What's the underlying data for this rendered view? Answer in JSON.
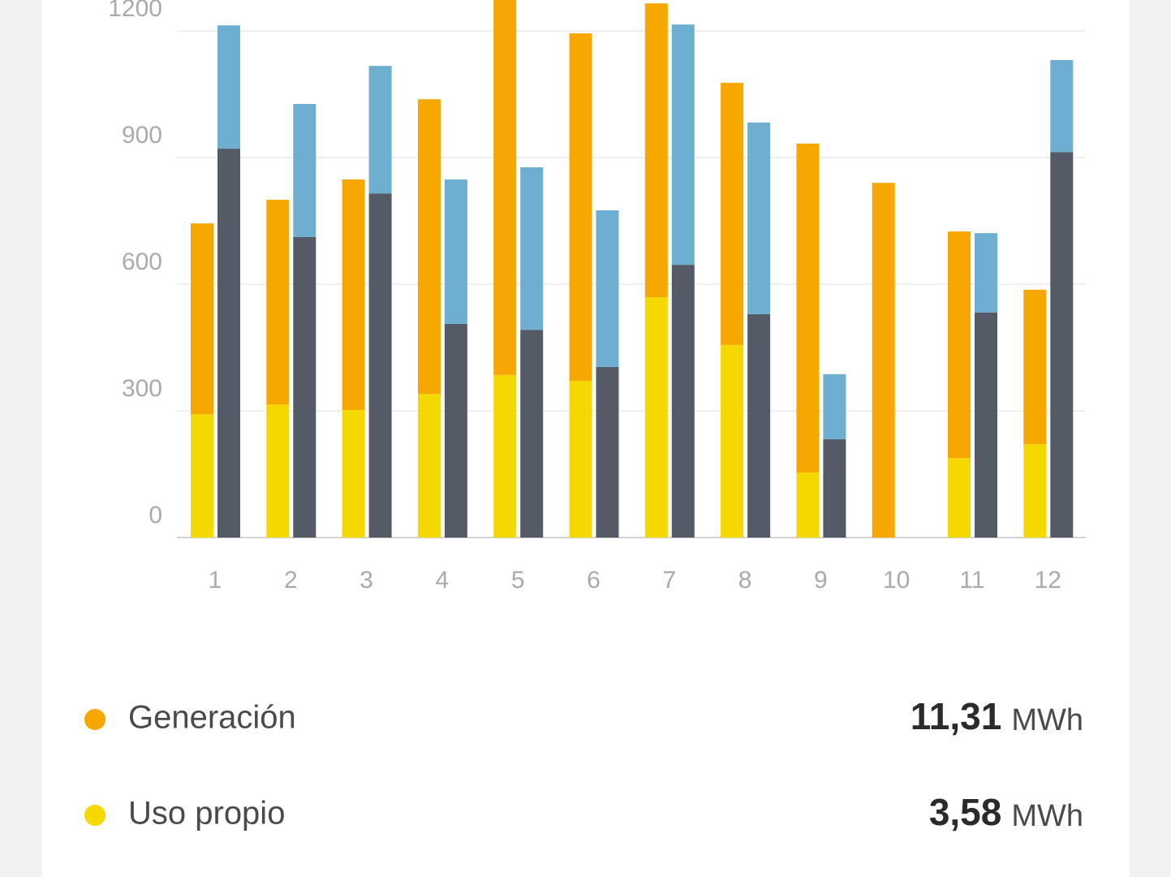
{
  "chart_data": {
    "type": "stacked-grouped-bar",
    "categories": [
      "1",
      "2",
      "3",
      "4",
      "5",
      "6",
      "7",
      "8",
      "9",
      "10",
      "11",
      "12"
    ],
    "ylim": [
      0,
      1200
    ],
    "yticks": [
      0,
      300,
      600,
      900,
      1200
    ],
    "grid": true,
    "series": [
      {
        "name": "Generación",
        "color": "#f7a800",
        "stack": 0,
        "total": "11,31",
        "unit": "MWh",
        "values": [
          452,
          485,
          546,
          698,
          890,
          823,
          696,
          621,
          779,
          840,
          537,
          366
        ]
      },
      {
        "name": "Uso propio",
        "color": "#f5d800",
        "stack": 0,
        "total": "3,58",
        "unit": "MWh",
        "values": [
          292,
          315,
          302,
          340,
          385,
          371,
          569,
          456,
          154,
          0,
          188,
          221
        ]
      },
      {
        "color": "#6eaed0",
        "stack": 1,
        "values": [
          292,
          315,
          302,
          342,
          385,
          371,
          569,
          454,
          154,
          0,
          188,
          218
        ]
      },
      {
        "color": "#545b66",
        "stack": 1,
        "values": [
          921,
          712,
          815,
          506,
          492,
          404,
          646,
          529,
          233,
          0,
          533,
          913
        ]
      }
    ]
  }
}
